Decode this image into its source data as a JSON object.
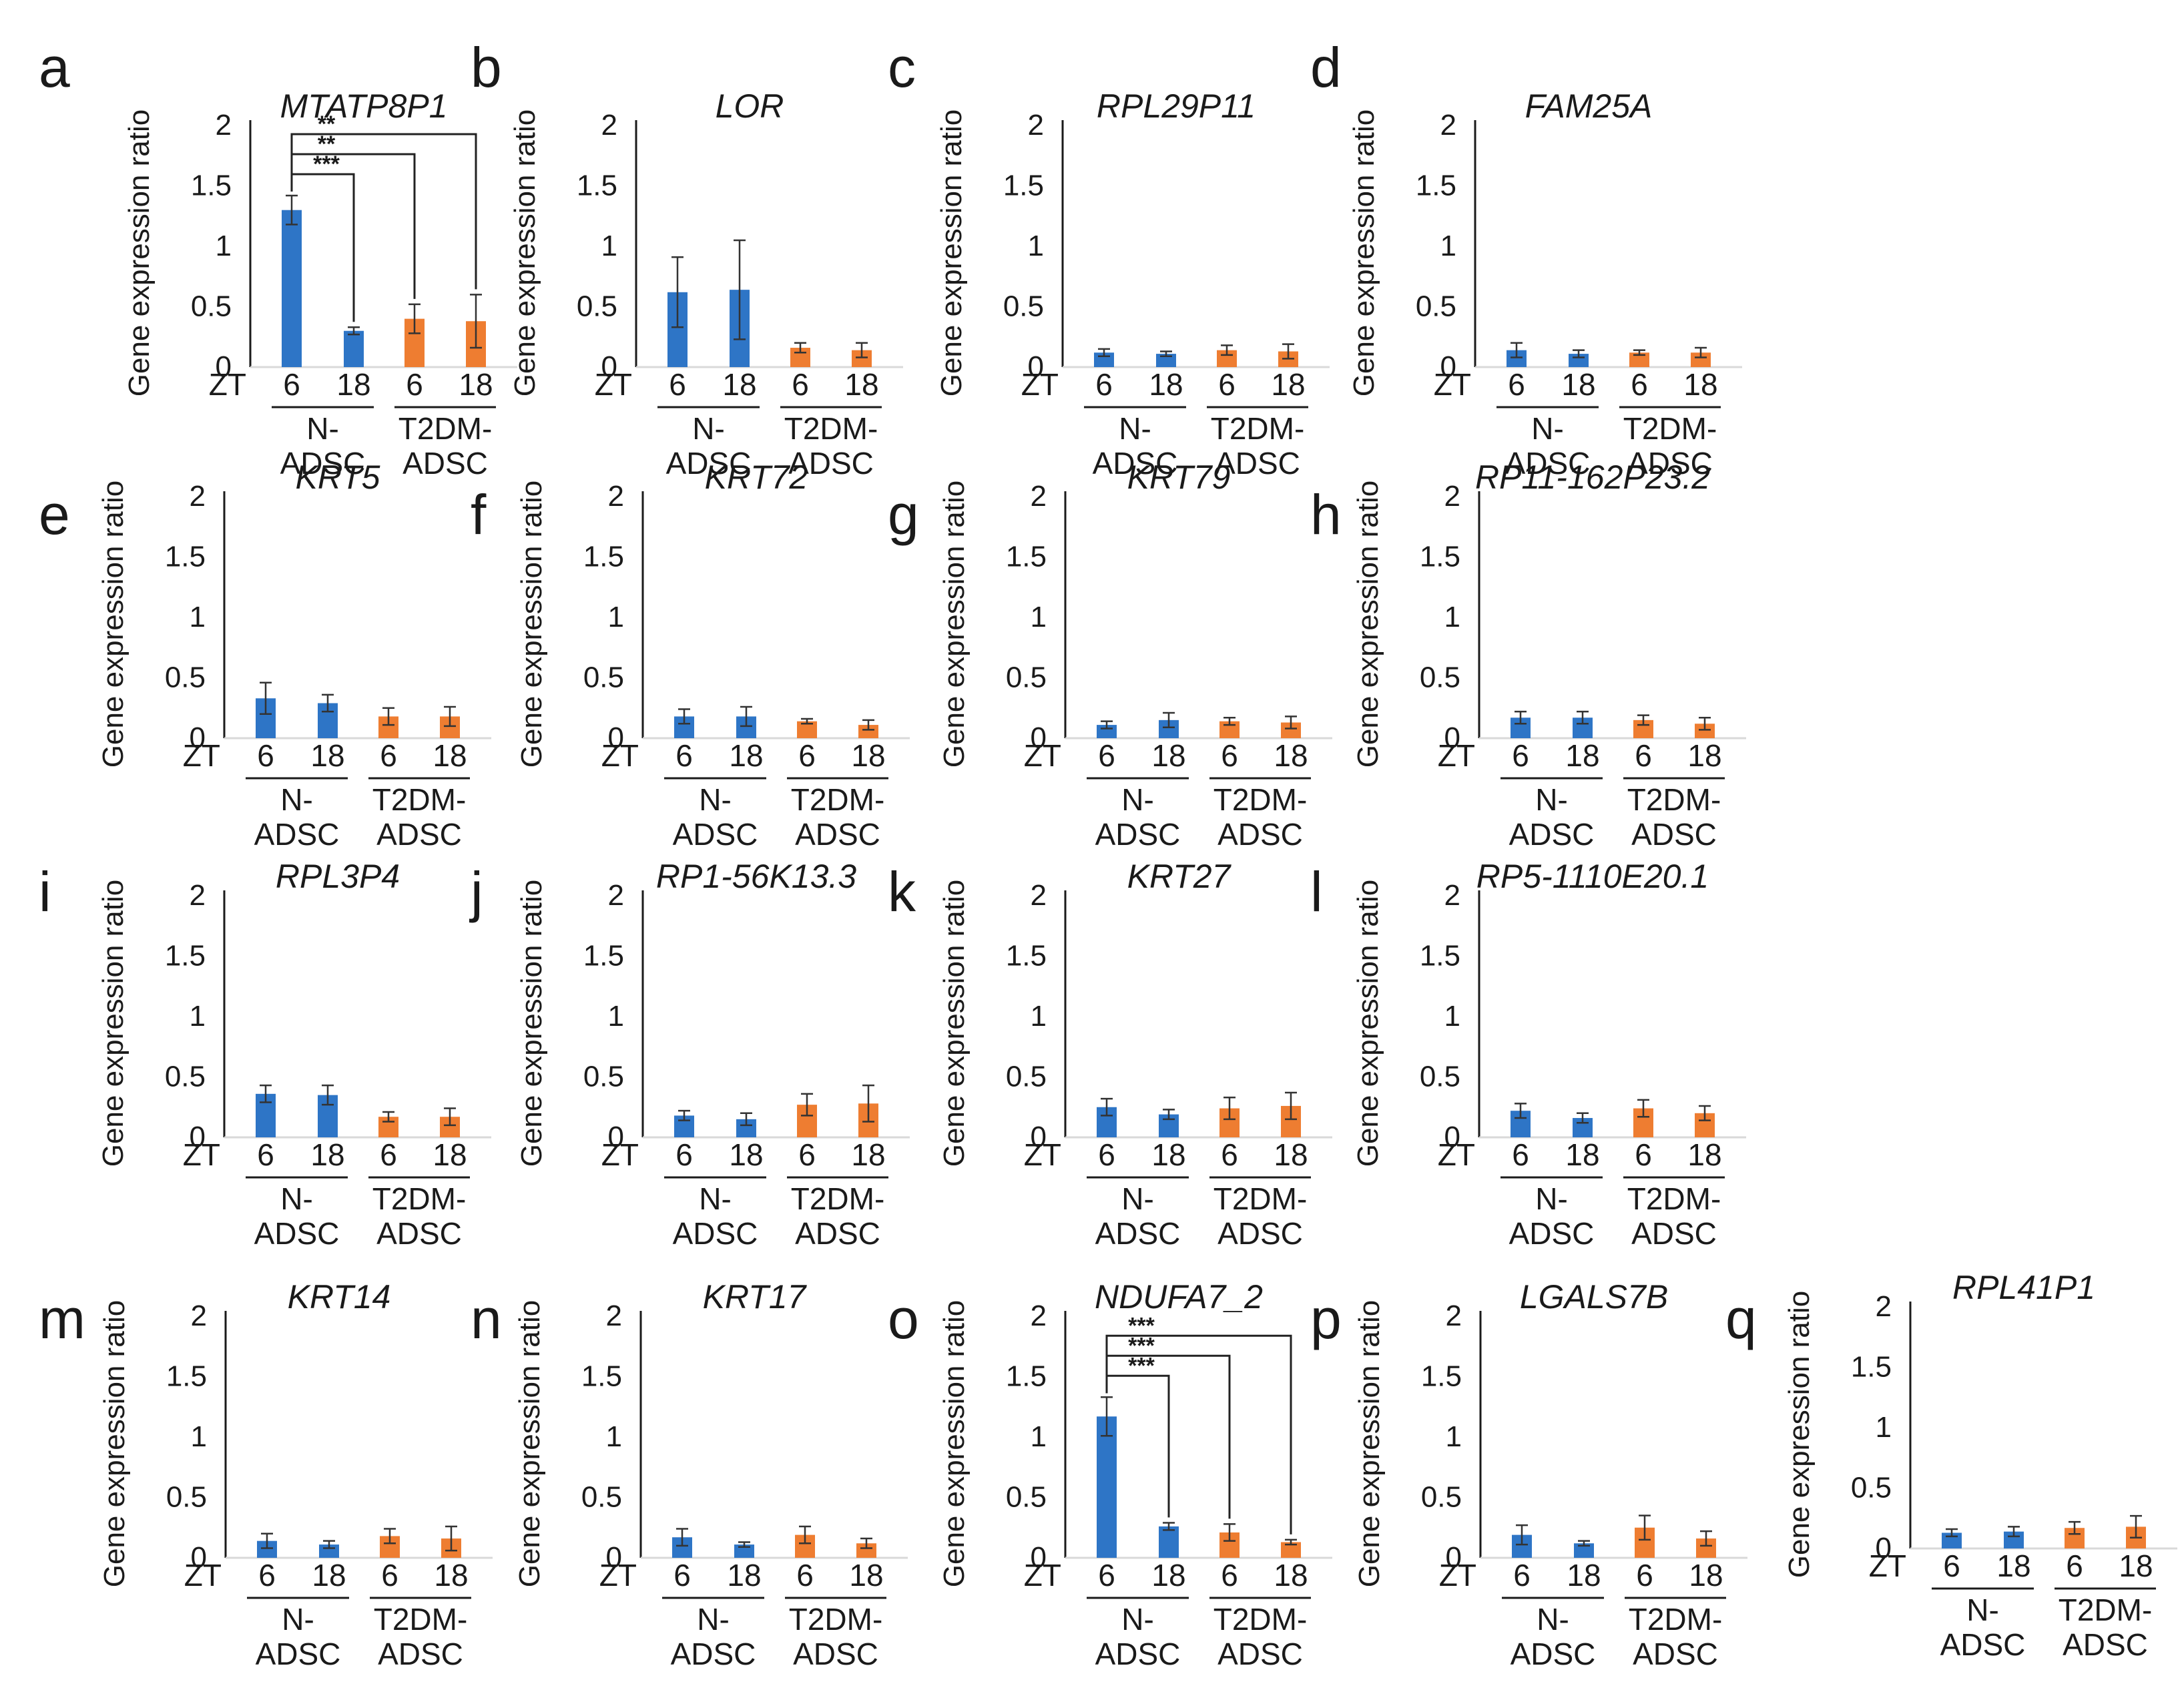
{
  "figure": {
    "y_axis_label": "Gene expression ratio",
    "zt_label": "ZT",
    "x_tick_labels": [
      "6",
      "18",
      "6",
      "18"
    ],
    "groups": [
      {
        "line1": "N-",
        "line2": "ADSC"
      },
      {
        "line1": "T2DM-",
        "line2": "ADSC"
      }
    ],
    "y_tick_labels": [
      "0",
      "0.5",
      "1",
      "1.5",
      "2"
    ],
    "colors": {
      "n_adsc": "#2e75c6",
      "t2dm_adsc": "#ee7d31",
      "axis": "#1a1a1a"
    }
  },
  "chart_data": [
    {
      "type": "bar",
      "panel": "a",
      "title": "MTATP8P1",
      "categories": [
        "N-ADSC ZT6",
        "N-ADSC ZT18",
        "T2DM-ADSC ZT6",
        "T2DM-ADSC ZT18"
      ],
      "values": [
        1.3,
        0.3,
        0.4,
        0.38
      ],
      "errors": [
        0.12,
        0.03,
        0.12,
        0.22
      ],
      "ylim": [
        0,
        2
      ],
      "ylabel": "Gene expression ratio",
      "significance": [
        {
          "from": 0,
          "to": 1,
          "label": "***"
        },
        {
          "from": 0,
          "to": 2,
          "label": "**"
        },
        {
          "from": 0,
          "to": 3,
          "label": "**"
        }
      ]
    },
    {
      "type": "bar",
      "panel": "b",
      "title": "LOR",
      "categories": [
        "N-ADSC ZT6",
        "N-ADSC ZT18",
        "T2DM-ADSC ZT6",
        "T2DM-ADSC ZT18"
      ],
      "values": [
        0.62,
        0.64,
        0.16,
        0.14
      ],
      "errors": [
        0.29,
        0.41,
        0.04,
        0.06
      ],
      "ylim": [
        0,
        2
      ],
      "ylabel": "Gene expression ratio",
      "significance": []
    },
    {
      "type": "bar",
      "panel": "c",
      "title": "RPL29P11",
      "categories": [
        "N-ADSC ZT6",
        "N-ADSC ZT18",
        "T2DM-ADSC ZT6",
        "T2DM-ADSC ZT18"
      ],
      "values": [
        0.12,
        0.11,
        0.14,
        0.13
      ],
      "errors": [
        0.03,
        0.02,
        0.04,
        0.06
      ],
      "ylim": [
        0,
        2
      ],
      "ylabel": "Gene expression ratio",
      "significance": []
    },
    {
      "type": "bar",
      "panel": "d",
      "title": "FAM25A",
      "categories": [
        "N-ADSC ZT6",
        "N-ADSC ZT18",
        "T2DM-ADSC ZT6",
        "T2DM-ADSC ZT18"
      ],
      "values": [
        0.14,
        0.11,
        0.12,
        0.12
      ],
      "errors": [
        0.06,
        0.03,
        0.02,
        0.04
      ],
      "ylim": [
        0,
        2
      ],
      "ylabel": "Gene expression ratio",
      "significance": []
    },
    {
      "type": "bar",
      "panel": "e",
      "title": "KRT5",
      "categories": [
        "N-ADSC ZT6",
        "N-ADSC ZT18",
        "T2DM-ADSC ZT6",
        "T2DM-ADSC ZT18"
      ],
      "values": [
        0.33,
        0.29,
        0.18,
        0.18
      ],
      "errors": [
        0.13,
        0.07,
        0.07,
        0.08
      ],
      "ylim": [
        0,
        2
      ],
      "ylabel": "Gene expression ratio",
      "significance": []
    },
    {
      "type": "bar",
      "panel": "f",
      "title": "KRT72",
      "categories": [
        "N-ADSC ZT6",
        "N-ADSC ZT18",
        "T2DM-ADSC ZT6",
        "T2DM-ADSC ZT18"
      ],
      "values": [
        0.18,
        0.18,
        0.14,
        0.11
      ],
      "errors": [
        0.06,
        0.08,
        0.02,
        0.04
      ],
      "ylim": [
        0,
        2
      ],
      "ylabel": "Gene expression ratio",
      "significance": []
    },
    {
      "type": "bar",
      "panel": "g",
      "title": "KRT79",
      "categories": [
        "N-ADSC ZT6",
        "N-ADSC ZT18",
        "T2DM-ADSC ZT6",
        "T2DM-ADSC ZT18"
      ],
      "values": [
        0.11,
        0.15,
        0.14,
        0.13
      ],
      "errors": [
        0.03,
        0.06,
        0.03,
        0.05
      ],
      "ylim": [
        0,
        2
      ],
      "ylabel": "Gene expression ratio",
      "significance": []
    },
    {
      "type": "bar",
      "panel": "h",
      "title": "RP11-162P23.2",
      "categories": [
        "N-ADSC ZT6",
        "N-ADSC ZT18",
        "T2DM-ADSC ZT6",
        "T2DM-ADSC ZT18"
      ],
      "values": [
        0.17,
        0.17,
        0.15,
        0.12
      ],
      "errors": [
        0.05,
        0.05,
        0.04,
        0.05
      ],
      "ylim": [
        0,
        2
      ],
      "ylabel": "Gene expression ratio",
      "significance": []
    },
    {
      "type": "bar",
      "panel": "i",
      "title": "RPL3P4",
      "categories": [
        "N-ADSC ZT6",
        "N-ADSC ZT18",
        "T2DM-ADSC ZT6",
        "T2DM-ADSC ZT18"
      ],
      "values": [
        0.36,
        0.35,
        0.17,
        0.17
      ],
      "errors": [
        0.07,
        0.08,
        0.04,
        0.07
      ],
      "ylim": [
        0,
        2
      ],
      "ylabel": "Gene expression ratio",
      "significance": []
    },
    {
      "type": "bar",
      "panel": "j",
      "title": "RP1-56K13.3",
      "categories": [
        "N-ADSC ZT6",
        "N-ADSC ZT18",
        "T2DM-ADSC ZT6",
        "T2DM-ADSC ZT18"
      ],
      "values": [
        0.18,
        0.15,
        0.27,
        0.28
      ],
      "errors": [
        0.04,
        0.05,
        0.09,
        0.15
      ],
      "ylim": [
        0,
        2
      ],
      "ylabel": "Gene expression ratio",
      "significance": []
    },
    {
      "type": "bar",
      "panel": "k",
      "title": "KRT27",
      "categories": [
        "N-ADSC ZT6",
        "N-ADSC ZT18",
        "T2DM-ADSC ZT6",
        "T2DM-ADSC ZT18"
      ],
      "values": [
        0.25,
        0.19,
        0.24,
        0.26
      ],
      "errors": [
        0.07,
        0.04,
        0.09,
        0.11
      ],
      "ylim": [
        0,
        2
      ],
      "ylabel": "Gene expression ratio",
      "significance": []
    },
    {
      "type": "bar",
      "panel": "l",
      "title": "RP5-1110E20.1",
      "categories": [
        "N-ADSC ZT6",
        "N-ADSC ZT18",
        "T2DM-ADSC ZT6",
        "T2DM-ADSC ZT18"
      ],
      "values": [
        0.22,
        0.16,
        0.24,
        0.2
      ],
      "errors": [
        0.06,
        0.04,
        0.07,
        0.06
      ],
      "ylim": [
        0,
        2
      ],
      "ylabel": "Gene expression ratio",
      "significance": []
    },
    {
      "type": "bar",
      "panel": "m",
      "title": "KRT14",
      "categories": [
        "N-ADSC ZT6",
        "N-ADSC ZT18",
        "T2DM-ADSC ZT6",
        "T2DM-ADSC ZT18"
      ],
      "values": [
        0.14,
        0.11,
        0.18,
        0.16
      ],
      "errors": [
        0.06,
        0.03,
        0.06,
        0.1
      ],
      "ylim": [
        0,
        2
      ],
      "ylabel": "Gene expression ratio",
      "significance": []
    },
    {
      "type": "bar",
      "panel": "n",
      "title": "KRT17",
      "categories": [
        "N-ADSC ZT6",
        "N-ADSC ZT18",
        "T2DM-ADSC ZT6",
        "T2DM-ADSC ZT18"
      ],
      "values": [
        0.17,
        0.11,
        0.19,
        0.12
      ],
      "errors": [
        0.07,
        0.02,
        0.07,
        0.04
      ],
      "ylim": [
        0,
        2
      ],
      "ylabel": "Gene expression ratio",
      "significance": []
    },
    {
      "type": "bar",
      "panel": "o",
      "title": "NDUFA7_2",
      "categories": [
        "N-ADSC ZT6",
        "N-ADSC ZT18",
        "T2DM-ADSC ZT6",
        "T2DM-ADSC ZT18"
      ],
      "values": [
        1.17,
        0.26,
        0.21,
        0.13
      ],
      "errors": [
        0.16,
        0.03,
        0.07,
        0.02
      ],
      "ylim": [
        0,
        2
      ],
      "ylabel": "Gene expression ratio",
      "significance": [
        {
          "from": 0,
          "to": 1,
          "label": "***"
        },
        {
          "from": 0,
          "to": 2,
          "label": "***"
        },
        {
          "from": 0,
          "to": 3,
          "label": "***"
        }
      ]
    },
    {
      "type": "bar",
      "panel": "p",
      "title": "LGALS7B",
      "categories": [
        "N-ADSC ZT6",
        "N-ADSC ZT18",
        "T2DM-ADSC ZT6",
        "T2DM-ADSC ZT18"
      ],
      "values": [
        0.19,
        0.12,
        0.25,
        0.16
      ],
      "errors": [
        0.08,
        0.02,
        0.1,
        0.06
      ],
      "ylim": [
        0,
        2
      ],
      "ylabel": "Gene expression ratio",
      "significance": []
    },
    {
      "type": "bar",
      "panel": "q",
      "title": "RPL41P1",
      "categories": [
        "N-ADSC ZT6",
        "N-ADSC ZT18",
        "T2DM-ADSC ZT6",
        "T2DM-ADSC ZT18"
      ],
      "values": [
        0.13,
        0.14,
        0.17,
        0.18
      ],
      "errors": [
        0.03,
        0.04,
        0.05,
        0.09
      ],
      "ylim": [
        0,
        2
      ],
      "ylabel": "Gene expression ratio",
      "significance": []
    }
  ]
}
